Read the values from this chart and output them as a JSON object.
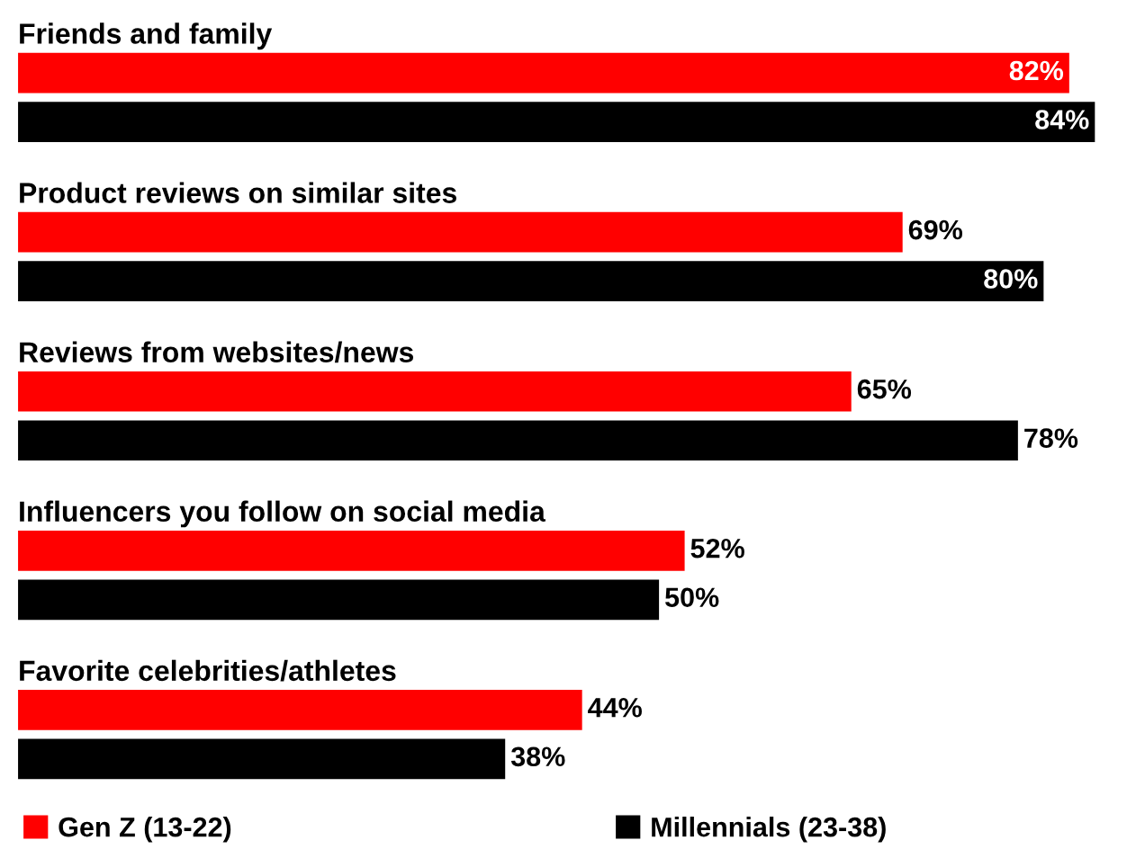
{
  "chart_data": {
    "type": "bar",
    "orientation": "horizontal",
    "categories": [
      "Friends and family",
      "Product reviews on similar sites",
      "Reviews from websites/news",
      "Influencers you follow on social media",
      "Favorite celebrities/athletes"
    ],
    "series": [
      {
        "name": "Gen Z (13-22)",
        "color": "#ff0000",
        "values": [
          82,
          69,
          65,
          52,
          44
        ],
        "value_labels": [
          "82%",
          "69%",
          "65%",
          "52%",
          "44%"
        ]
      },
      {
        "name": "Millennials (23-38)",
        "color": "#000000",
        "values": [
          84,
          80,
          78,
          50,
          38
        ],
        "value_labels": [
          "84%",
          "80%",
          "78%",
          "50%",
          "38%"
        ]
      }
    ],
    "legend": "bottom"
  }
}
